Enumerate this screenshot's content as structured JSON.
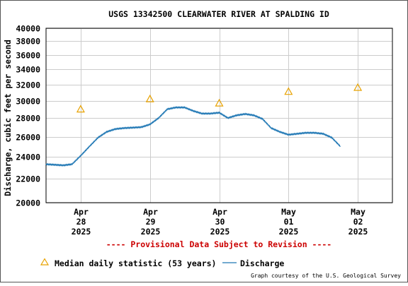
{
  "chart_data": {
    "type": "line",
    "title": "USGS 13342500 CLEARWATER RIVER AT SPALDING ID",
    "ylabel": "Discharge, cubic feet per second",
    "xlabel": "",
    "yscale": "log",
    "ylim": [
      20000,
      40000
    ],
    "yticks": [
      {
        "value": 20000,
        "label": "20000"
      },
      {
        "value": 22000,
        "label": "22000"
      },
      {
        "value": 24000,
        "label": "24000"
      },
      {
        "value": 26000,
        "label": "26000"
      },
      {
        "value": 28000,
        "label": "28000"
      },
      {
        "value": 30000,
        "label": "30000"
      },
      {
        "value": 32000,
        "label": "32000"
      },
      {
        "value": 34000,
        "label": "34000"
      },
      {
        "value": 36000,
        "label": "36000"
      },
      {
        "value": 38000,
        "label": "38000"
      },
      {
        "value": 40000,
        "label": "40000"
      }
    ],
    "xlim": [
      "2025-04-27T12:00",
      "2025-05-02T12:00"
    ],
    "xticks": [
      {
        "x": "2025-04-28",
        "label": [
          "Apr",
          "28",
          "2025"
        ]
      },
      {
        "x": "2025-04-29",
        "label": [
          "Apr",
          "29",
          "2025"
        ]
      },
      {
        "x": "2025-04-30",
        "label": [
          "Apr",
          "30",
          "2025"
        ]
      },
      {
        "x": "2025-05-01",
        "label": [
          "May",
          "01",
          "2025"
        ]
      },
      {
        "x": "2025-05-02",
        "label": [
          "May",
          "02",
          "2025"
        ]
      }
    ],
    "grid": true,
    "series": [
      {
        "name": "Discharge",
        "color": "#1f77b4",
        "points": [
          [
            "2025-04-27T12:00",
            23300
          ],
          [
            "2025-04-27T15:00",
            23250
          ],
          [
            "2025-04-27T18:00",
            23200
          ],
          [
            "2025-04-27T21:00",
            23300
          ],
          [
            "2025-04-28T00:00",
            24100
          ],
          [
            "2025-04-28T03:00",
            25000
          ],
          [
            "2025-04-28T06:00",
            25900
          ],
          [
            "2025-04-28T09:00",
            26500
          ],
          [
            "2025-04-28T12:00",
            26800
          ],
          [
            "2025-04-28T15:00",
            26900
          ],
          [
            "2025-04-28T18:00",
            26950
          ],
          [
            "2025-04-28T21:00",
            27000
          ],
          [
            "2025-04-29T00:00",
            27300
          ],
          [
            "2025-04-29T03:00",
            28000
          ],
          [
            "2025-04-29T06:00",
            29000
          ],
          [
            "2025-04-29T09:00",
            29200
          ],
          [
            "2025-04-29T12:00",
            29200
          ],
          [
            "2025-04-29T15:00",
            28800
          ],
          [
            "2025-04-29T18:00",
            28500
          ],
          [
            "2025-04-29T21:00",
            28500
          ],
          [
            "2025-04-30T00:00",
            28600
          ],
          [
            "2025-04-30T03:00",
            28000
          ],
          [
            "2025-04-30T06:00",
            28300
          ],
          [
            "2025-04-30T09:00",
            28450
          ],
          [
            "2025-04-30T12:00",
            28300
          ],
          [
            "2025-04-30T15:00",
            27900
          ],
          [
            "2025-04-30T18:00",
            26900
          ],
          [
            "2025-04-30T21:00",
            26500
          ],
          [
            "2025-05-01T00:00",
            26200
          ],
          [
            "2025-05-01T03:00",
            26300
          ],
          [
            "2025-05-01T06:00",
            26400
          ],
          [
            "2025-05-01T09:00",
            26400
          ],
          [
            "2025-05-01T12:00",
            26300
          ],
          [
            "2025-05-01T15:00",
            25900
          ],
          [
            "2025-05-01T18:00",
            25000
          ]
        ]
      },
      {
        "name": "Median daily statistic (53 years)",
        "color": "#e8a200",
        "marker": "triangle",
        "points": [
          [
            "2025-04-28T00:00",
            29000
          ],
          [
            "2025-04-29T00:00",
            30200
          ],
          [
            "2025-04-30T00:00",
            29700
          ],
          [
            "2025-05-01T00:00",
            31100
          ],
          [
            "2025-05-02T00:00",
            31600
          ]
        ]
      }
    ],
    "legend_position": "bottom"
  },
  "notice": "---- Provisional Data Subject to Revision ----",
  "legend": {
    "median_label": "Median daily statistic (53 years)",
    "discharge_label": "Discharge"
  },
  "credit": "Graph courtesy of the U.S. Geological Survey",
  "colors": {
    "notice": "#cc0000",
    "grid": "#cccccc",
    "axis": "#000000"
  }
}
